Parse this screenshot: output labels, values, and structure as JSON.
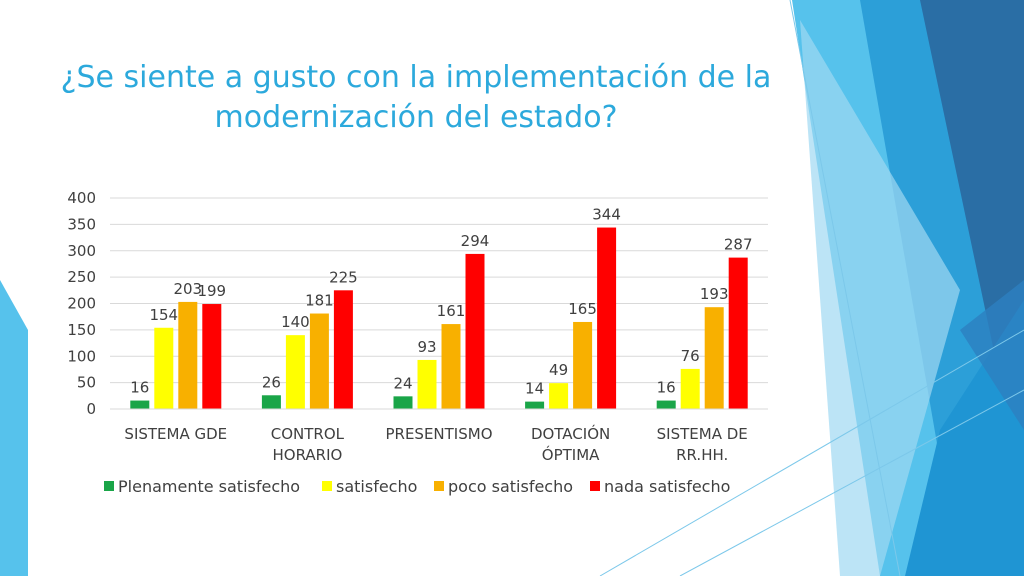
{
  "slide": {
    "title": "¿Se siente a gusto con la implementación de la modernización del estado?"
  },
  "chart_data": {
    "type": "bar",
    "title": "",
    "xlabel": "",
    "ylabel": "",
    "ylim": [
      0,
      400
    ],
    "yticks": [
      0,
      50,
      100,
      150,
      200,
      250,
      300,
      350,
      400
    ],
    "grid": true,
    "legend_position": "bottom",
    "categories": [
      [
        "SISTEMA GDE"
      ],
      [
        "CONTROL",
        "HORARIO"
      ],
      [
        "PRESENTISMO"
      ],
      [
        "DOTACIÓN",
        "ÓPTIMA"
      ],
      [
        "SISTEMA DE",
        "RR.HH."
      ]
    ],
    "series": [
      {
        "name": "Plenamente satisfecho",
        "color": "#1aa548",
        "values": [
          16,
          26,
          24,
          14,
          16
        ]
      },
      {
        "name": "satisfecho",
        "color": "#ffff00",
        "values": [
          154,
          140,
          93,
          49,
          76
        ]
      },
      {
        "name": "poco satisfecho",
        "color": "#f8b000",
        "values": [
          203,
          181,
          161,
          165,
          193
        ]
      },
      {
        "name": "nada satisfecho",
        "color": "#ff0000",
        "values": [
          199,
          225,
          294,
          344,
          287
        ]
      }
    ]
  },
  "colors": {
    "title": "#2ca9dc",
    "grid": "#d9d9d9",
    "text": "#404040"
  }
}
